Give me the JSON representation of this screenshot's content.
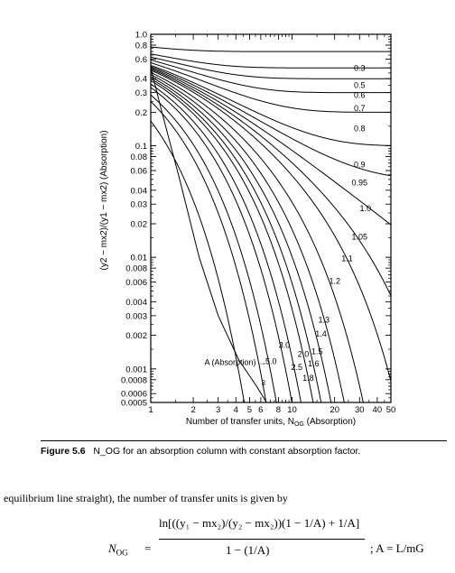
{
  "chart_data": {
    "type": "line",
    "xscale": "log",
    "yscale": "log",
    "xlim": [
      1,
      50
    ],
    "ylim": [
      0.0005,
      1.0
    ],
    "xlabel": "Number of transfer units, N_OG (Absorption)",
    "ylabel": "(y2 − mx2)/(y1 − mx2) (Absorption)",
    "x_tick_labels": [
      "1",
      "2",
      "3",
      "4",
      "5",
      "6",
      "8",
      "10",
      "20",
      "30",
      "40",
      "50"
    ],
    "x_ticks": [
      1,
      2,
      3,
      4,
      5,
      6,
      8,
      10,
      20,
      30,
      40,
      50
    ],
    "y_tick_labels": [
      "1.0",
      "0.8",
      "0.6",
      "0.4",
      "0.3",
      "0.2",
      "0.1",
      "0.08",
      "0.06",
      "0.04",
      "0.03",
      "0.02",
      "0.01",
      "0.008",
      "0.006",
      "0.004",
      "0.003",
      "0.002",
      "0.001",
      "0.0008",
      "0.0006",
      "0.0005"
    ],
    "y_ticks": [
      1.0,
      0.8,
      0.6,
      0.4,
      0.3,
      0.2,
      0.1,
      0.08,
      0.06,
      0.04,
      0.03,
      0.02,
      0.01,
      0.008,
      0.006,
      0.004,
      0.003,
      0.002,
      0.001,
      0.0008,
      0.0006,
      0.0005
    ],
    "series_param": "A (Absorption)",
    "series": [
      {
        "name": "0.3",
        "A": 0.3
      },
      {
        "name": "0.5",
        "A": 0.5
      },
      {
        "name": "0.6",
        "A": 0.6
      },
      {
        "name": "0.7",
        "A": 0.7
      },
      {
        "name": "0.8",
        "A": 0.8
      },
      {
        "name": "0.9",
        "A": 0.9
      },
      {
        "name": "0.95",
        "A": 0.95
      },
      {
        "name": "1.0",
        "A": 1.0
      },
      {
        "name": "1.05",
        "A": 1.05
      },
      {
        "name": "1.1",
        "A": 1.1
      },
      {
        "name": "1.2",
        "A": 1.2
      },
      {
        "name": "1.3",
        "A": 1.3
      },
      {
        "name": "1.4",
        "A": 1.4
      },
      {
        "name": "1.5",
        "A": 1.5
      },
      {
        "name": "1.6",
        "A": 1.6
      },
      {
        "name": "1.8",
        "A": 1.8
      },
      {
        "name": "2.0",
        "A": 2.0
      },
      {
        "name": "2.5",
        "A": 2.5
      },
      {
        "name": "3.0",
        "A": 3.0
      },
      {
        "name": "5.0",
        "A": 5.0
      },
      {
        "name": "∞",
        "A": 1000000
      }
    ],
    "annotation": "A (Absorption) →"
  },
  "caption": {
    "figure_label": "Figure 5.6",
    "text": "N_OG for an absorption column with constant absorption factor."
  },
  "body": {
    "text": "equilibrium line straight), the number of transfer units is given by"
  },
  "equation": {
    "lhs": "N",
    "lhs_sub": "OG",
    "equals": "=",
    "numerator": "ln[((y₁ − mx₂)/(y₂ − mx₂))(1 − 1/A) + 1/A]",
    "denominator": "1 − (1/A)",
    "tail": "; A = L/mG"
  }
}
